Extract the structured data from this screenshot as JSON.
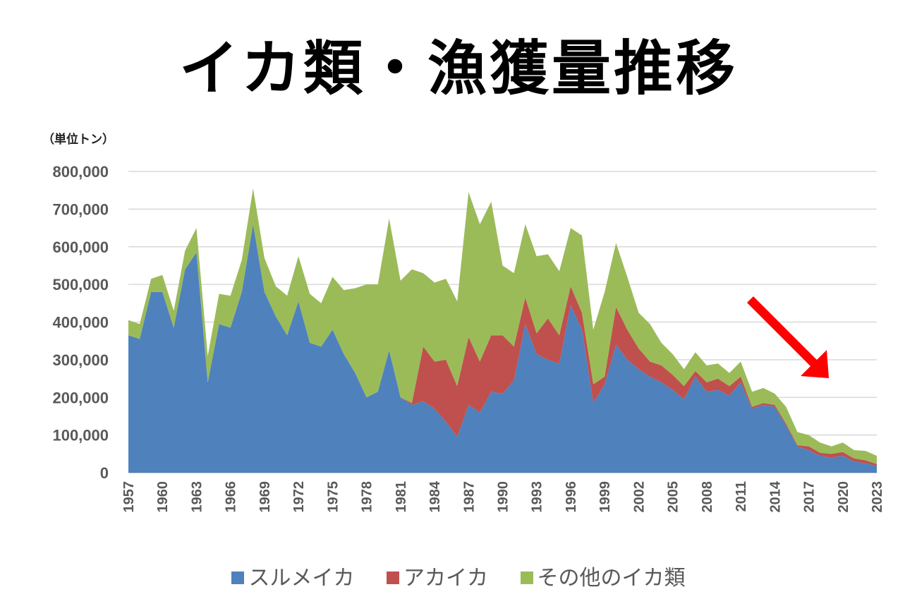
{
  "title": "イカ類・漁獲量推移",
  "unit_label": "（単位トン）",
  "colors": {
    "surume": "#4f81bd",
    "akaika": "#c0504d",
    "other": "#9bbb59",
    "arrow": "#ff0000",
    "grid": "#d9d9d9"
  },
  "chart_data": {
    "type": "area",
    "stacked": true,
    "title": "イカ類・漁獲量推移",
    "ylabel": "（単位トン）",
    "ylim": [
      0,
      800000
    ],
    "yticks": [
      0,
      100000,
      200000,
      300000,
      400000,
      500000,
      600000,
      700000,
      800000
    ],
    "ytick_labels": [
      "0",
      "100,000",
      "200,000",
      "300,000",
      "400,000",
      "500,000",
      "600,000",
      "700,000",
      "800,000"
    ],
    "x": [
      1957,
      1958,
      1959,
      1960,
      1961,
      1962,
      1963,
      1964,
      1965,
      1966,
      1967,
      1968,
      1969,
      1970,
      1971,
      1972,
      1973,
      1974,
      1975,
      1976,
      1977,
      1978,
      1979,
      1980,
      1981,
      1982,
      1983,
      1984,
      1985,
      1986,
      1987,
      1988,
      1989,
      1990,
      1991,
      1992,
      1993,
      1994,
      1995,
      1996,
      1997,
      1998,
      1999,
      2000,
      2001,
      2002,
      2003,
      2004,
      2005,
      2006,
      2007,
      2008,
      2009,
      2010,
      2011,
      2012,
      2013,
      2014,
      2015,
      2016,
      2017,
      2018,
      2019,
      2020,
      2021,
      2022,
      2023
    ],
    "xtick_labels": [
      "1957",
      "1960",
      "1963",
      "1966",
      "1969",
      "1972",
      "1975",
      "1978",
      "1981",
      "1984",
      "1987",
      "1990",
      "1993",
      "1996",
      "1999",
      "2002",
      "2005",
      "2008",
      "2011",
      "2014",
      "2017",
      "2020",
      "2023"
    ],
    "series": [
      {
        "name": "スルメイカ",
        "values": [
          365000,
          355000,
          480000,
          480000,
          385000,
          540000,
          585000,
          240000,
          395000,
          385000,
          480000,
          660000,
          480000,
          415000,
          365000,
          455000,
          345000,
          335000,
          380000,
          315000,
          265000,
          200000,
          215000,
          325000,
          200000,
          180000,
          190000,
          170000,
          135000,
          95000,
          180000,
          160000,
          215000,
          210000,
          245000,
          395000,
          315000,
          300000,
          290000,
          445000,
          380000,
          185000,
          235000,
          340000,
          300000,
          275000,
          255000,
          240000,
          220000,
          195000,
          255000,
          215000,
          220000,
          205000,
          240000,
          170000,
          180000,
          175000,
          125000,
          70000,
          60000,
          45000,
          40000,
          45000,
          30000,
          25000,
          18000
        ]
      },
      {
        "name": "アカイカ",
        "values": [
          0,
          0,
          0,
          0,
          0,
          0,
          0,
          0,
          0,
          0,
          0,
          0,
          0,
          0,
          0,
          0,
          0,
          0,
          0,
          0,
          0,
          0,
          0,
          0,
          0,
          5000,
          145000,
          125000,
          165000,
          135000,
          180000,
          135000,
          150000,
          155000,
          90000,
          70000,
          55000,
          110000,
          75000,
          50000,
          45000,
          50000,
          20000,
          100000,
          80000,
          55000,
          40000,
          45000,
          40000,
          35000,
          15000,
          25000,
          30000,
          25000,
          15000,
          5000,
          5000,
          5000,
          5000,
          3000,
          10000,
          8000,
          10000,
          10000,
          8000,
          8000,
          5000
        ]
      },
      {
        "name": "その他のイカ類",
        "values": [
          40000,
          40000,
          35000,
          45000,
          45000,
          50000,
          65000,
          70000,
          80000,
          85000,
          85000,
          95000,
          90000,
          80000,
          105000,
          120000,
          130000,
          115000,
          140000,
          170000,
          225000,
          300000,
          285000,
          350000,
          310000,
          355000,
          195000,
          210000,
          215000,
          225000,
          385000,
          365000,
          355000,
          185000,
          195000,
          195000,
          205000,
          170000,
          170000,
          155000,
          205000,
          145000,
          225000,
          170000,
          140000,
          95000,
          100000,
          60000,
          55000,
          45000,
          50000,
          45000,
          40000,
          35000,
          40000,
          40000,
          40000,
          30000,
          45000,
          35000,
          30000,
          27000,
          20000,
          25000,
          22000,
          25000,
          22000
        ]
      }
    ],
    "legend_position": "bottom-center",
    "annotation": "red downward arrow indicating decline (2014–2018)"
  },
  "legend": [
    {
      "label": "スルメイカ"
    },
    {
      "label": "アカイカ"
    },
    {
      "label": "その他のイカ類"
    }
  ]
}
